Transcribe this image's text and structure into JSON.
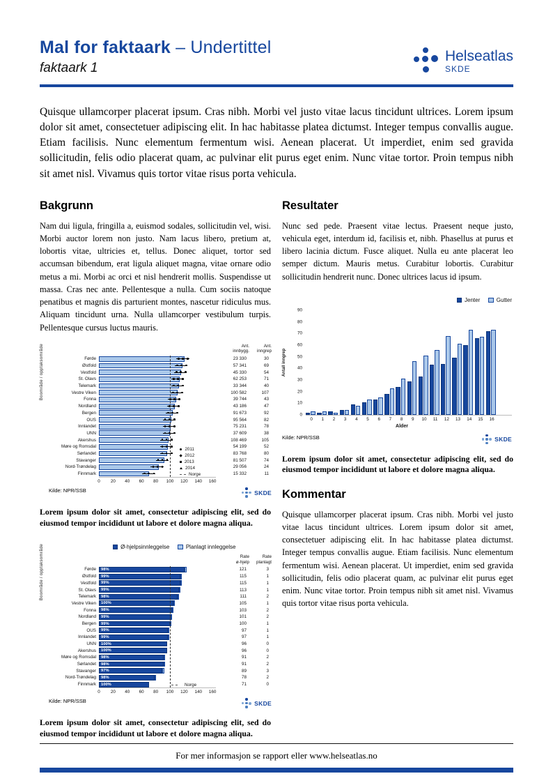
{
  "header": {
    "title_bold": "Mal for faktaark",
    "title_rest": " – Undertittel",
    "subtitle": "faktaark 1",
    "logo_text": "Helseatlas",
    "logo_sub": "SKDE"
  },
  "intro": "Quisque ullamcorper placerat ipsum. Cras nibh. Morbi vel justo vitae lacus tincidunt ultrices. Lorem ipsum dolor sit amet, consectetuer adipiscing elit. In hac habitasse platea dictumst. Integer tempus convallis augue. Etiam facilisis. Nunc elementum fermentum wisi. Aenean placerat. Ut imperdiet, enim sed gravida sollicitudin, felis odio placerat quam, ac pulvinar elit purus eget enim. Nunc vitae tortor. Proin tempus nibh sit amet nisl. Vivamus quis tortor vitae risus porta vehicula.",
  "sections": {
    "bakgrunn": {
      "heading": "Bakgrunn",
      "body": "Nam dui ligula, fringilla a, euismod sodales, sollicitudin vel, wisi. Morbi auctor lorem non justo. Nam lacus libero, pretium at, lobortis vitae, ultricies et, tellus. Donec aliquet, tortor sed accumsan bibendum, erat ligula aliquet magna, vitae ornare odio metus a mi. Morbi ac orci et nisl hendrerit mollis. Suspendisse ut massa. Cras nec ante. Pellentesque a nulla. Cum sociis natoque penatibus et magnis dis parturient montes, nascetur ridiculus mus. Aliquam tincidunt urna. Nulla ullamcorper vestibulum turpis. Pellentesque cursus luctus mauris."
    },
    "resultater": {
      "heading": "Resultater",
      "body": "Nunc sed pede. Praesent vitae lectus. Praesent neque justo, vehicula eget, interdum id, facilisis et, nibh. Phasellus at purus et libero lacinia dictum. Fusce aliquet. Nulla eu ante placerat leo semper dictum. Mauris metus. Curabitur lobortis. Curabitur sollicitudin hendrerit nunc. Donec ultrices lacus id ipsum."
    },
    "kommentar": {
      "heading": "Kommentar",
      "body": "Quisque ullamcorper placerat ipsum. Cras nibh. Morbi vel justo vitae lacus tincidunt ultrices. Lorem ipsum dolor sit amet, consectetuer adipiscing elit. In hac habitasse platea dictumst. Integer tempus convallis augue. Etiam facilisis. Nunc elementum fermentum wisi. Aenean placerat. Ut imperdiet, enim sed gravida sollicitudin, felis odio placerat quam, ac pulvinar elit purus eget enim. Nunc vitae tortor. Proin tempus nibh sit amet nisl. Vivamus quis tortor vitae risus porta vehicula."
    }
  },
  "captions": {
    "chart1": "Lorem ipsum dolor sit amet, consectetur adipiscing elit, sed do eiusmod tempor incididunt ut labore et dolore magna aliqua.",
    "chart2": "Lorem ipsum dolor sit amet, consectetur adipiscing elit, sed do eiusmod tempor incididunt ut labore et dolore magna aliqua.",
    "chart3": "Lorem ipsum dolor sit amet, consectetur adipiscing elit, sed do eiusmod tempor incididunt ut labore et dolore magna aliqua."
  },
  "footer": {
    "text": "For mer informasjon se rapport eller www.helseatlas.no"
  },
  "colors": {
    "brand_blue": "#17479e",
    "light_blue": "#aac8ea"
  },
  "chart_data": [
    {
      "id": "chart1",
      "type": "bar-horizontal",
      "ylabel": "Boområde / opptaksområde",
      "categories": [
        "Førde",
        "Østfold",
        "Vestfold",
        "St. Olavs",
        "Telemark",
        "Vestre Viken",
        "Fonna",
        "Nordland",
        "Bergen",
        "OUS",
        "Innlandet",
        "UNN",
        "Akershus",
        "Møre og Romsdal",
        "Sørlandet",
        "Stavanger",
        "Nord-Trøndelag",
        "Finnmark"
      ],
      "values": [
        121,
        118,
        116,
        114,
        113,
        111,
        109,
        107,
        104,
        102,
        101,
        100,
        98,
        97,
        96,
        92,
        84,
        71
      ],
      "columns": [
        {
          "header": "Ant.\ninnbygg.",
          "values": [
            "23 330",
            "57 341",
            "45 330",
            "62 253",
            "33 344",
            "100 582",
            "39 744",
            "43 186",
            "91 673",
            "95 564",
            "75 231",
            "37 609",
            "108 469",
            "54 199",
            "83 768",
            "81 507",
            "29 056",
            "15 332"
          ]
        },
        {
          "header": "Ant.\ninngrep",
          "values": [
            "30",
            "69",
            "54",
            "71",
            "40",
            "107",
            "43",
            "47",
            "92",
            "82",
            "78",
            "38",
            "105",
            "52",
            "80",
            "74",
            "24",
            "11"
          ]
        }
      ],
      "year_legend": [
        "2011",
        "2012",
        "2013",
        "2014"
      ],
      "norge_label": "Norge",
      "ref_line": 100,
      "xticks": [
        0,
        20,
        40,
        60,
        80,
        100,
        120,
        140,
        160
      ],
      "xlim": [
        0,
        160
      ],
      "source": "Kilde: NPR/SSB",
      "logo": "SKDE"
    },
    {
      "id": "chart2",
      "type": "bar",
      "xlabel": "Alder",
      "ylabel": "Antall inngrep",
      "categories": [
        "0",
        "1",
        "2",
        "3",
        "4",
        "5",
        "6",
        "7",
        "8",
        "9",
        "10",
        "11",
        "12",
        "13",
        "14",
        "15",
        "16"
      ],
      "series": [
        {
          "name": "Jenter",
          "color": "#17479e",
          "values": [
            2,
            2,
            3,
            4,
            9,
            11,
            13,
            18,
            24,
            29,
            33,
            43,
            44,
            49,
            60,
            66,
            72
          ]
        },
        {
          "name": "Gutter",
          "color": "#aac8ea",
          "values": [
            3,
            3,
            2,
            4,
            8,
            13,
            15,
            23,
            31,
            46,
            51,
            56,
            68,
            61,
            73,
            67,
            73
          ]
        }
      ],
      "ylim": [
        0,
        90
      ],
      "yticks": [
        0,
        10,
        20,
        30,
        40,
        50,
        60,
        70,
        80,
        90
      ],
      "legend_position": "top-right",
      "source": "Kilde: NPR/SSB",
      "logo": "SKDE"
    },
    {
      "id": "chart3",
      "type": "stacked-bar-horizontal",
      "ylabel": "Boområde / opptaksområde",
      "legend": [
        {
          "name": "Ø-hjelpsinnleggelse",
          "color": "#17479e"
        },
        {
          "name": "Planlagt innleggelse",
          "color": "#aac8ea"
        }
      ],
      "categories": [
        "Førde",
        "Østfold",
        "Vestfold",
        "St. Olavs",
        "Telemark",
        "Vestre Viken",
        "Fonna",
        "Nordland",
        "Bergen",
        "OUS",
        "Innlandet",
        "UNN",
        "Akershus",
        "Møre og Romsdal",
        "Sørlandet",
        "Stavanger",
        "Nord-Trøndelag",
        "Finnmark"
      ],
      "bar_labels": [
        "98%",
        "99%",
        "99%",
        "99%",
        "98%",
        "100%",
        "98%",
        "99%",
        "99%",
        "99%",
        "99%",
        "100%",
        "100%",
        "98%",
        "98%",
        "97%",
        "98%",
        "100%"
      ],
      "series": [
        {
          "name": "Rate ø-hjelp",
          "values": [
            121,
            115,
            115,
            113,
            111,
            105,
            103,
            101,
            100,
            97,
            97,
            96,
            96,
            91,
            91,
            89,
            78,
            71
          ]
        },
        {
          "name": "Rate planlagt",
          "values": [
            3,
            1,
            1,
            1,
            2,
            1,
            2,
            2,
            1,
            1,
            1,
            0,
            0,
            2,
            2,
            3,
            2,
            0
          ]
        }
      ],
      "columns": [
        {
          "header": "Rate\nø-hjelp",
          "values": [
            "121",
            "115",
            "115",
            "113",
            "111",
            "105",
            "103",
            "101",
            "100",
            "97",
            "97",
            "96",
            "96",
            "91",
            "91",
            "89",
            "78",
            "71"
          ]
        },
        {
          "header": "Rate\nplanlagt",
          "values": [
            "3",
            "1",
            "1",
            "1",
            "2",
            "1",
            "2",
            "2",
            "1",
            "1",
            "1",
            "0",
            "0",
            "2",
            "2",
            "3",
            "2",
            "0"
          ]
        }
      ],
      "norge_label": "Norge",
      "ref_line": 100,
      "xticks": [
        0,
        20,
        40,
        60,
        80,
        100,
        120,
        140,
        160
      ],
      "xlim": [
        0,
        160
      ],
      "source": "Kilde: NPR/SSB",
      "logo": "SKDE"
    }
  ]
}
